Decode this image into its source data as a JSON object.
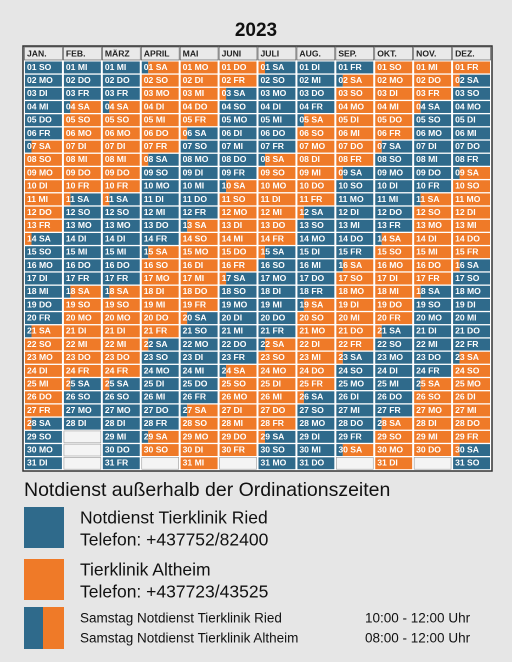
{
  "title": "2023",
  "colors": {
    "b": "#2f6a8b",
    "o": "#ef7a28",
    "empty": "#f4f4f4",
    "header": "#e9e9e9"
  },
  "months": [
    {
      "name": "JAN.",
      "days": [
        "01 SO",
        "02 MO",
        "03 DI",
        "04 MI",
        "05 DO",
        "06 FR",
        "07 SA",
        "08 SO",
        "09 MO",
        "10 DI",
        "11 MI",
        "12 DO",
        "13 FR",
        "14 SA",
        "15 SO",
        "16 MO",
        "17 DI",
        "18 MI",
        "19 DO",
        "20 FR",
        "21 SA",
        "22 SO",
        "23 MO",
        "24 DI",
        "25 MI",
        "26 DO",
        "27 FR",
        "28 SA",
        "29 SO",
        "30 MO",
        "31 DI"
      ],
      "fills": [
        "b",
        "b",
        "b",
        "b",
        "b",
        "b",
        "bo",
        "o",
        "o",
        "o",
        "o",
        "o",
        "o",
        "ob",
        "b",
        "b",
        "b",
        "b",
        "b",
        "b",
        "bo",
        "o",
        "o",
        "o",
        "o",
        "o",
        "o",
        "ob",
        "b",
        "b",
        "b"
      ]
    },
    {
      "name": "FEB.",
      "days": [
        "01 MI",
        "02 DO",
        "03 FR",
        "04 SA",
        "05 SO",
        "06 MO",
        "07 DI",
        "08 MI",
        "09 DO",
        "10 FR",
        "11 SA",
        "12 SO",
        "13 MO",
        "14 DI",
        "15 MI",
        "16 DO",
        "17 FR",
        "18 SA",
        "19 SO",
        "20 MO",
        "21 DI",
        "22 MI",
        "23 DO",
        "24 FR",
        "25 SA",
        "26 SO",
        "27 MO",
        "28 DI"
      ],
      "fills": [
        "b",
        "b",
        "b",
        "bo",
        "o",
        "o",
        "o",
        "o",
        "o",
        "o",
        "ob",
        "b",
        "b",
        "b",
        "b",
        "b",
        "b",
        "bo",
        "o",
        "o",
        "o",
        "o",
        "o",
        "o",
        "ob",
        "b",
        "b",
        "b"
      ]
    },
    {
      "name": "MÄRZ",
      "days": [
        "01 MI",
        "02 DO",
        "03 FR",
        "04 SA",
        "05 SO",
        "06 MO",
        "07 DI",
        "08 MI",
        "09 DO",
        "10 FR",
        "11 SA",
        "12 SO",
        "13 MO",
        "14 DI",
        "15 MI",
        "16 DO",
        "17 FR",
        "18 SA",
        "19 SO",
        "20 MO",
        "21 DI",
        "22 MI",
        "23 DO",
        "24 FR",
        "25 SA",
        "26 SO",
        "27 MO",
        "28 DI",
        "29 MI",
        "30 DO",
        "31 FR"
      ],
      "fills": [
        "b",
        "b",
        "b",
        "bo",
        "o",
        "o",
        "o",
        "o",
        "o",
        "o",
        "ob",
        "b",
        "b",
        "b",
        "b",
        "b",
        "b",
        "bo",
        "o",
        "o",
        "o",
        "o",
        "o",
        "o",
        "ob",
        "b",
        "b",
        "b",
        "b",
        "b",
        "b"
      ]
    },
    {
      "name": "APRIL",
      "days": [
        "01 SA",
        "02 SO",
        "03 MO",
        "04 DI",
        "05 MI",
        "06 DO",
        "07 FR",
        "08 SA",
        "09 SO",
        "10 MO",
        "11 DI",
        "12 MI",
        "13 DO",
        "14 FR",
        "15 SA",
        "16 SO",
        "17 MO",
        "18 DI",
        "19 MI",
        "20 DO",
        "21 FR",
        "22 SA",
        "23 SO",
        "24 MO",
        "25 DI",
        "26 MI",
        "27 DO",
        "28 FR",
        "29 SA",
        "30 SO"
      ],
      "fills": [
        "bo",
        "o",
        "o",
        "o",
        "o",
        "o",
        "o",
        "ob",
        "b",
        "b",
        "b",
        "b",
        "b",
        "b",
        "bo",
        "o",
        "o",
        "o",
        "o",
        "o",
        "o",
        "ob",
        "b",
        "b",
        "b",
        "b",
        "b",
        "b",
        "bo",
        "o"
      ]
    },
    {
      "name": "MAI",
      "days": [
        "01 MO",
        "02 DI",
        "03 MI",
        "04 DO",
        "05 FR",
        "06 SA",
        "07 SO",
        "08 MO",
        "09 DI",
        "10 MI",
        "11 DO",
        "12 FR",
        "13 SA",
        "14 SO",
        "15 MO",
        "16 DI",
        "17 MI",
        "18 DO",
        "19 FR",
        "20 SA",
        "21 SO",
        "22 MO",
        "23 DI",
        "24 MI",
        "25 DO",
        "26 FR",
        "27 SA",
        "28 SO",
        "29 MO",
        "30 DI",
        "31 MI"
      ],
      "fills": [
        "o",
        "o",
        "o",
        "o",
        "o",
        "ob",
        "b",
        "b",
        "b",
        "b",
        "b",
        "b",
        "bo",
        "o",
        "o",
        "o",
        "o",
        "o",
        "o",
        "ob",
        "b",
        "b",
        "b",
        "b",
        "b",
        "b",
        "bo",
        "o",
        "o",
        "o",
        "o"
      ]
    },
    {
      "name": "JUNI",
      "days": [
        "01 DO",
        "02 FR",
        "03 SA",
        "04 SO",
        "05 MO",
        "06 DI",
        "07 MI",
        "08 DO",
        "09 FR",
        "10 SA",
        "11 SO",
        "12 MO",
        "13 DI",
        "14 MI",
        "15 DO",
        "16 FR",
        "17 SA",
        "18 SO",
        "19 MO",
        "20 DI",
        "21 MI",
        "22 DO",
        "23 FR",
        "24 SA",
        "25 SO",
        "26 MO",
        "27 DI",
        "28 MI",
        "29 DO",
        "30 FR"
      ],
      "fills": [
        "o",
        "o",
        "ob",
        "b",
        "b",
        "b",
        "b",
        "b",
        "b",
        "bo",
        "o",
        "o",
        "o",
        "o",
        "o",
        "o",
        "ob",
        "b",
        "b",
        "b",
        "b",
        "b",
        "b",
        "bo",
        "o",
        "o",
        "o",
        "o",
        "o",
        "o"
      ]
    },
    {
      "name": "JULI",
      "days": [
        "01 SA",
        "02 SO",
        "03 MO",
        "04 DI",
        "05 MI",
        "06 DO",
        "07 FR",
        "08 SA",
        "09 SO",
        "10 MO",
        "11 DI",
        "12 MI",
        "13 DO",
        "14 FR",
        "15 SA",
        "16 SO",
        "17 MO",
        "18 DI",
        "19 MI",
        "20 DO",
        "21 FR",
        "22 SA",
        "23 SO",
        "24 MO",
        "25 DI",
        "26 MI",
        "27 DO",
        "28 FR",
        "29 SA",
        "30 SO",
        "31 MO"
      ],
      "fills": [
        "ob",
        "b",
        "b",
        "b",
        "b",
        "b",
        "b",
        "bo",
        "o",
        "o",
        "o",
        "o",
        "o",
        "o",
        "ob",
        "b",
        "b",
        "b",
        "b",
        "b",
        "b",
        "bo",
        "o",
        "o",
        "o",
        "o",
        "o",
        "o",
        "ob",
        "b",
        "b"
      ]
    },
    {
      "name": "AUG.",
      "days": [
        "01 DI",
        "02 MI",
        "03 DO",
        "04 FR",
        "05 SA",
        "06 SO",
        "07 MO",
        "08 DI",
        "09 MI",
        "10 DO",
        "11 FR",
        "12 SA",
        "13 SO",
        "14 MO",
        "15 DI",
        "16 MI",
        "17 DO",
        "18 FR",
        "19 SA",
        "20 SO",
        "21 MO",
        "22 DI",
        "23 MI",
        "24 DO",
        "25 FR",
        "26 SA",
        "27 SO",
        "28 MO",
        "29 DI",
        "30 MI",
        "31 DO"
      ],
      "fills": [
        "b",
        "b",
        "b",
        "b",
        "bo",
        "o",
        "o",
        "o",
        "o",
        "o",
        "o",
        "ob",
        "b",
        "b",
        "b",
        "b",
        "b",
        "b",
        "bo",
        "o",
        "o",
        "o",
        "o",
        "o",
        "o",
        "ob",
        "b",
        "b",
        "b",
        "b",
        "b"
      ]
    },
    {
      "name": "SEP.",
      "days": [
        "01 FR",
        "02 SA",
        "03 SO",
        "04 MO",
        "05 DI",
        "06 MI",
        "07 DO",
        "08 FR",
        "09 SA",
        "10 SO",
        "11 MO",
        "12 DI",
        "13 MI",
        "14 DO",
        "15 FR",
        "16 SA",
        "17 SO",
        "18 MO",
        "19 DI",
        "20 MI",
        "21 DO",
        "22 FR",
        "23 SA",
        "24 SO",
        "25 MO",
        "26 DI",
        "27 MI",
        "28 DO",
        "29 FR",
        "30 SA"
      ],
      "fills": [
        "b",
        "bo",
        "o",
        "o",
        "o",
        "o",
        "o",
        "o",
        "ob",
        "b",
        "b",
        "b",
        "b",
        "b",
        "b",
        "bo",
        "o",
        "o",
        "o",
        "o",
        "o",
        "o",
        "ob",
        "b",
        "b",
        "b",
        "b",
        "b",
        "b",
        "bo"
      ]
    },
    {
      "name": "OKT.",
      "days": [
        "01 SO",
        "02 MO",
        "03 DI",
        "04 MI",
        "05 DO",
        "06 FR",
        "07 SA",
        "08 SO",
        "09 MO",
        "10 DI",
        "11 MI",
        "12 DO",
        "13 FR",
        "14 SA",
        "15 SO",
        "16 MO",
        "17 DI",
        "18 MI",
        "19 DO",
        "20 FR",
        "21 SA",
        "22 SO",
        "23 MO",
        "24 DI",
        "25 MI",
        "26 DO",
        "27 FR",
        "28 SA",
        "29 SO",
        "30 MO",
        "31 DI"
      ],
      "fills": [
        "o",
        "o",
        "o",
        "o",
        "o",
        "o",
        "ob",
        "b",
        "b",
        "b",
        "b",
        "b",
        "b",
        "bo",
        "o",
        "o",
        "o",
        "o",
        "o",
        "o",
        "ob",
        "b",
        "b",
        "b",
        "b",
        "b",
        "b",
        "bo",
        "o",
        "o",
        "o"
      ]
    },
    {
      "name": "NOV.",
      "days": [
        "01 MI",
        "02 DO",
        "03 FR",
        "04 SA",
        "05 SO",
        "06 MO",
        "07 DI",
        "08 MI",
        "09 DO",
        "10 FR",
        "11 SA",
        "12 SO",
        "13 MO",
        "14 DI",
        "15 MI",
        "16 DO",
        "17 FR",
        "18 SA",
        "19 SO",
        "20 MO",
        "21 DI",
        "22 MI",
        "23 DO",
        "24 FR",
        "25 SA",
        "26 SO",
        "27 MO",
        "28 DI",
        "29 MI",
        "30 DO"
      ],
      "fills": [
        "o",
        "o",
        "o",
        "ob",
        "b",
        "b",
        "b",
        "b",
        "b",
        "b",
        "bo",
        "o",
        "o",
        "o",
        "o",
        "o",
        "o",
        "ob",
        "b",
        "b",
        "b",
        "b",
        "b",
        "b",
        "bo",
        "o",
        "o",
        "o",
        "o",
        "o"
      ]
    },
    {
      "name": "DEZ.",
      "days": [
        "01 FR",
        "02 SA",
        "03 SO",
        "04 MO",
        "05 DI",
        "06 MI",
        "07 DO",
        "08 FR",
        "09 SA",
        "10 SO",
        "11 MO",
        "12 DI",
        "13 MI",
        "14 DO",
        "15 FR",
        "16 SA",
        "17 SO",
        "18 MO",
        "19 DI",
        "20 MI",
        "21 DO",
        "22 FR",
        "23 SA",
        "24 SO",
        "25 MO",
        "26 DI",
        "27 MI",
        "28 DO",
        "29 FR",
        "30 SA",
        "31 SO"
      ],
      "fills": [
        "o",
        "ob",
        "b",
        "b",
        "b",
        "b",
        "b",
        "b",
        "bo",
        "o",
        "o",
        "o",
        "o",
        "o",
        "o",
        "ob",
        "b",
        "b",
        "b",
        "b",
        "b",
        "b",
        "bo",
        "o",
        "o",
        "o",
        "o",
        "o",
        "o",
        "ob",
        "b"
      ]
    }
  ],
  "legend": {
    "heading": "Notdienst außerhalb der Ordinationszeiten",
    "items": [
      {
        "fill": "b",
        "lines": [
          "Notdienst Tierklinik Ried",
          "Telefon: +437752/82400"
        ]
      },
      {
        "fill": "o",
        "lines": [
          "Tierklinik Altheim",
          "Telefon: +437723/43525"
        ]
      }
    ],
    "saturday": {
      "fill": "bo",
      "rows": [
        {
          "text": "Samstag Notdienst Tierklinik Ried",
          "time": "10:00 - 12:00 Uhr"
        },
        {
          "text": "Samstag Notdienst Tierklinik Altheim",
          "time": "08:00 - 12:00 Uhr"
        }
      ]
    }
  }
}
